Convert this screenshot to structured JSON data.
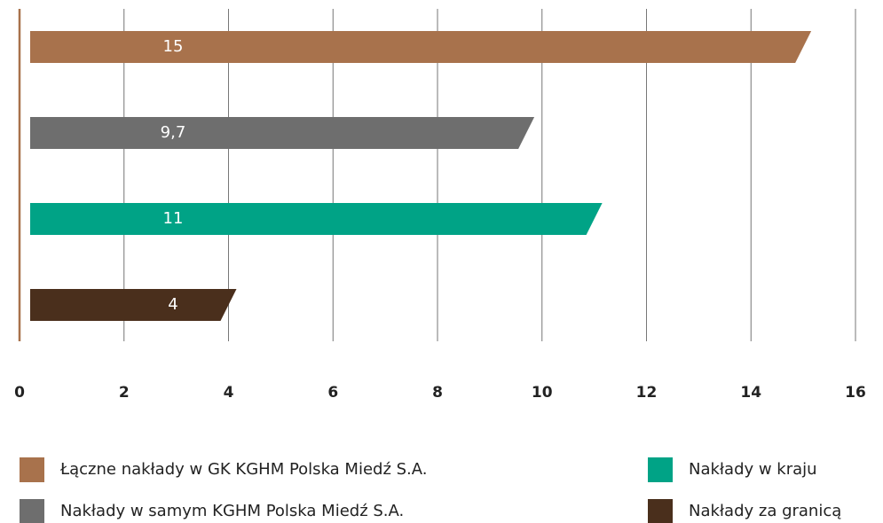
{
  "chart_data": {
    "type": "bar",
    "orientation": "horizontal",
    "categories": [
      "Łączne nakłady w GK KGHM Polska Miedź S.A.",
      "Nakłady w samym KGHM Polska Miedź S.A.",
      "Nakłady w kraju",
      "Nakłady za granicą"
    ],
    "values": [
      15,
      9.7,
      11,
      4
    ],
    "value_labels": [
      "15",
      "9,7",
      "11",
      "4"
    ],
    "colors": [
      "#a8724c",
      "#6e6e6e",
      "#00a386",
      "#4a2f1c"
    ],
    "xlim": [
      0,
      16
    ],
    "xticks": [
      0,
      2,
      4,
      6,
      8,
      10,
      12,
      14,
      16
    ],
    "grid": true
  }
}
